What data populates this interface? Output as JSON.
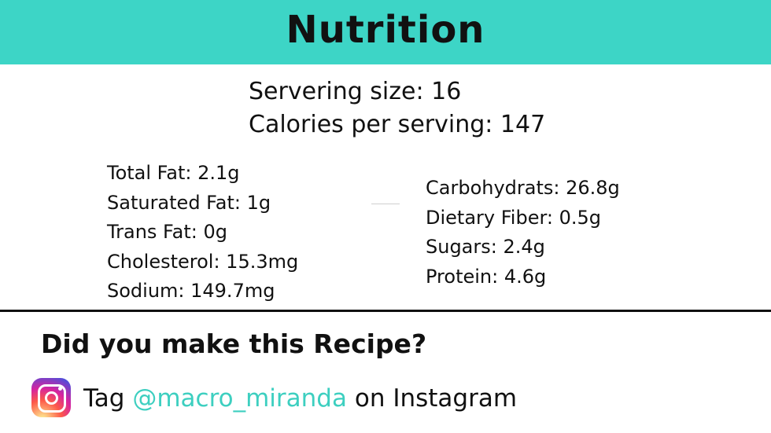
{
  "header": {
    "title": "Nutrition"
  },
  "serving": {
    "size": "Servering size: 16",
    "calories": "Calories per serving: 147"
  },
  "nutrients_left": [
    "Total Fat: 2.1g",
    "Saturated Fat: 1g",
    "Trans Fat: 0g",
    "Cholesterol: 15.3mg",
    "Sodium: 149.7mg"
  ],
  "nutrients_right": [
    "Carbohydrats: 26.8g",
    "Dietary Fiber: 0.5g",
    "Sugars: 2.4g",
    "Protein: 4.6g"
  ],
  "cta": {
    "question": "Did you make this Recipe?",
    "tag_prefix": "Tag ",
    "handle": "@macro_miranda",
    "tag_suffix": " on Instagram"
  },
  "icons": {
    "social": "instagram-icon"
  },
  "colors": {
    "accent": "#3dd5c6",
    "handle": "#3dcfc0",
    "text": "#111111"
  }
}
